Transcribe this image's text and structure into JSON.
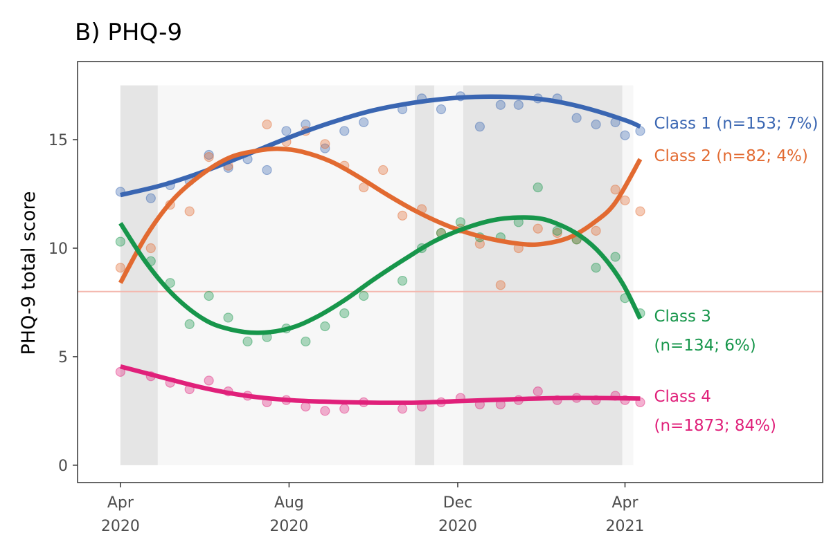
{
  "chart_data": {
    "type": "line",
    "title": "B) PHQ-9",
    "ylabel": "PHQ-9 total score",
    "xlabel": "",
    "ylim": [
      -0.8,
      18.6
    ],
    "xlim": [
      "2020-03-01",
      "2021-08-22"
    ],
    "yticks": [
      0,
      5,
      10,
      15
    ],
    "xticks": [
      {
        "date": "2020-04-01",
        "label": [
          "Apr",
          "2020"
        ]
      },
      {
        "date": "2020-08-01",
        "label": [
          "Aug",
          "2020"
        ]
      },
      {
        "date": "2020-12-01",
        "label": [
          "Dec",
          "2020"
        ]
      },
      {
        "date": "2021-04-01",
        "label": [
          "Apr",
          "2021"
        ]
      }
    ],
    "grid": false,
    "reference_line": {
      "y": 8,
      "color": "#f4b7ae"
    },
    "background_period": {
      "start": "2020-04-01",
      "end": "2021-04-07"
    },
    "shaded_periods": [
      {
        "start": "2020-04-01",
        "end": "2020-04-28"
      },
      {
        "start": "2020-10-31",
        "end": "2020-11-14"
      },
      {
        "start": "2020-12-05",
        "end": "2021-03-30"
      }
    ],
    "series": [
      {
        "name": "Class 1",
        "label_lines": [
          "Class 1 (n=153; 7%)"
        ],
        "color": "#3a66b2",
        "points": [
          [
            "2020-04-01",
            12.6
          ],
          [
            "2020-04-23",
            12.3
          ],
          [
            "2020-05-07",
            12.9
          ],
          [
            "2020-05-21",
            13.1
          ],
          [
            "2020-06-04",
            14.3
          ],
          [
            "2020-06-18",
            13.7
          ],
          [
            "2020-07-02",
            14.1
          ],
          [
            "2020-07-16",
            13.6
          ],
          [
            "2020-07-30",
            15.4
          ],
          [
            "2020-08-13",
            15.7
          ],
          [
            "2020-08-27",
            14.6
          ],
          [
            "2020-09-10",
            15.4
          ],
          [
            "2020-09-24",
            15.8
          ],
          [
            "2020-10-22",
            16.4
          ],
          [
            "2020-11-05",
            16.9
          ],
          [
            "2020-11-19",
            16.4
          ],
          [
            "2020-12-03",
            17.0
          ],
          [
            "2020-12-17",
            15.6
          ],
          [
            "2021-01-01",
            16.6
          ],
          [
            "2021-01-14",
            16.6
          ],
          [
            "2021-01-28",
            16.9
          ],
          [
            "2021-02-11",
            16.9
          ],
          [
            "2021-02-25",
            16.0
          ],
          [
            "2021-03-11",
            15.7
          ],
          [
            "2021-03-25",
            15.8
          ],
          [
            "2021-04-01",
            15.2
          ],
          [
            "2021-04-12",
            15.4
          ]
        ],
        "fit": [
          [
            "2020-04-01",
            12.45
          ],
          [
            "2020-05-01",
            12.9
          ],
          [
            "2020-06-01",
            13.55
          ],
          [
            "2020-07-01",
            14.3
          ],
          [
            "2020-08-01",
            15.1
          ],
          [
            "2020-09-01",
            15.8
          ],
          [
            "2020-10-01",
            16.35
          ],
          [
            "2020-11-01",
            16.72
          ],
          [
            "2020-12-01",
            16.93
          ],
          [
            "2021-01-01",
            16.98
          ],
          [
            "2021-02-01",
            16.85
          ],
          [
            "2021-03-01",
            16.5
          ],
          [
            "2021-04-01",
            15.9
          ],
          [
            "2021-04-12",
            15.6
          ]
        ]
      },
      {
        "name": "Class 2",
        "label_lines": [
          "Class 2 (n=82; 4%)"
        ],
        "color": "#e26a31",
        "points": [
          [
            "2020-04-01",
            9.1
          ],
          [
            "2020-04-23",
            10.0
          ],
          [
            "2020-05-07",
            12.0
          ],
          [
            "2020-05-21",
            11.7
          ],
          [
            "2020-06-04",
            14.2
          ],
          [
            "2020-06-18",
            13.8
          ],
          [
            "2020-07-16",
            15.7
          ],
          [
            "2020-07-30",
            14.9
          ],
          [
            "2020-08-13",
            15.4
          ],
          [
            "2020-08-27",
            14.8
          ],
          [
            "2020-09-10",
            13.8
          ],
          [
            "2020-09-24",
            12.8
          ],
          [
            "2020-10-08",
            13.6
          ],
          [
            "2020-10-22",
            11.5
          ],
          [
            "2020-11-05",
            11.8
          ],
          [
            "2020-11-19",
            10.7
          ],
          [
            "2020-12-03",
            10.9
          ],
          [
            "2020-12-17",
            10.2
          ],
          [
            "2021-01-01",
            8.3
          ],
          [
            "2021-01-14",
            10.0
          ],
          [
            "2021-01-28",
            10.9
          ],
          [
            "2021-02-11",
            10.7
          ],
          [
            "2021-02-25",
            10.4
          ],
          [
            "2021-03-11",
            10.8
          ],
          [
            "2021-03-25",
            12.7
          ],
          [
            "2021-04-01",
            12.2
          ],
          [
            "2021-04-12",
            11.7
          ]
        ],
        "fit": [
          [
            "2020-04-01",
            8.4
          ],
          [
            "2020-04-20",
            10.6
          ],
          [
            "2020-05-10",
            12.3
          ],
          [
            "2020-06-01",
            13.5
          ],
          [
            "2020-06-20",
            14.2
          ],
          [
            "2020-07-10",
            14.5
          ],
          [
            "2020-07-25",
            14.58
          ],
          [
            "2020-08-10",
            14.45
          ],
          [
            "2020-08-31",
            14.0
          ],
          [
            "2020-09-20",
            13.3
          ],
          [
            "2020-10-10",
            12.5
          ],
          [
            "2020-11-01",
            11.7
          ],
          [
            "2020-11-25",
            11.0
          ],
          [
            "2020-12-20",
            10.5
          ],
          [
            "2021-01-15",
            10.2
          ],
          [
            "2021-02-01",
            10.2
          ],
          [
            "2021-02-20",
            10.5
          ],
          [
            "2021-03-10",
            11.2
          ],
          [
            "2021-03-25",
            12.1
          ],
          [
            "2021-04-12",
            14.1
          ]
        ]
      },
      {
        "name": "Class 3",
        "label_lines": [
          "Class 3",
          "(n=134; 6%)"
        ],
        "color": "#17964b",
        "points": [
          [
            "2020-04-01",
            10.3
          ],
          [
            "2020-04-23",
            9.4
          ],
          [
            "2020-05-07",
            8.4
          ],
          [
            "2020-05-21",
            6.5
          ],
          [
            "2020-06-04",
            7.8
          ],
          [
            "2020-06-18",
            6.8
          ],
          [
            "2020-07-02",
            5.7
          ],
          [
            "2020-07-16",
            5.9
          ],
          [
            "2020-07-30",
            6.3
          ],
          [
            "2020-08-13",
            5.7
          ],
          [
            "2020-08-27",
            6.4
          ],
          [
            "2020-09-10",
            7.0
          ],
          [
            "2020-09-24",
            7.8
          ],
          [
            "2020-10-22",
            8.5
          ],
          [
            "2020-11-05",
            10.0
          ],
          [
            "2020-11-19",
            10.7
          ],
          [
            "2020-12-03",
            11.2
          ],
          [
            "2020-12-17",
            10.5
          ],
          [
            "2021-01-01",
            10.5
          ],
          [
            "2021-01-14",
            11.2
          ],
          [
            "2021-01-28",
            12.8
          ],
          [
            "2021-02-11",
            10.8
          ],
          [
            "2021-02-25",
            10.4
          ],
          [
            "2021-03-11",
            9.1
          ],
          [
            "2021-03-25",
            9.6
          ],
          [
            "2021-04-01",
            7.7
          ],
          [
            "2021-04-12",
            7.0
          ]
        ],
        "fit": [
          [
            "2020-04-01",
            11.15
          ],
          [
            "2020-04-20",
            9.3
          ],
          [
            "2020-05-10",
            7.8
          ],
          [
            "2020-06-01",
            6.7
          ],
          [
            "2020-06-20",
            6.25
          ],
          [
            "2020-07-10",
            6.1
          ],
          [
            "2020-08-01",
            6.3
          ],
          [
            "2020-08-20",
            6.8
          ],
          [
            "2020-09-10",
            7.6
          ],
          [
            "2020-10-01",
            8.55
          ],
          [
            "2020-10-25",
            9.55
          ],
          [
            "2020-11-15",
            10.35
          ],
          [
            "2020-12-10",
            11.0
          ],
          [
            "2021-01-01",
            11.35
          ],
          [
            "2021-01-25",
            11.4
          ],
          [
            "2021-02-10",
            11.15
          ],
          [
            "2021-02-28",
            10.55
          ],
          [
            "2021-03-15",
            9.7
          ],
          [
            "2021-03-30",
            8.4
          ],
          [
            "2021-04-12",
            6.75
          ]
        ]
      },
      {
        "name": "Class 4",
        "label_lines": [
          "Class 4",
          "(n=1873; 84%)"
        ],
        "color": "#e0207a",
        "points": [
          [
            "2020-04-01",
            4.3
          ],
          [
            "2020-04-23",
            4.1
          ],
          [
            "2020-05-07",
            3.8
          ],
          [
            "2020-05-21",
            3.5
          ],
          [
            "2020-06-04",
            3.9
          ],
          [
            "2020-06-18",
            3.4
          ],
          [
            "2020-07-02",
            3.2
          ],
          [
            "2020-07-16",
            2.9
          ],
          [
            "2020-07-30",
            3.0
          ],
          [
            "2020-08-13",
            2.7
          ],
          [
            "2020-08-27",
            2.5
          ],
          [
            "2020-09-10",
            2.6
          ],
          [
            "2020-09-24",
            2.9
          ],
          [
            "2020-10-22",
            2.6
          ],
          [
            "2020-11-05",
            2.7
          ],
          [
            "2020-11-19",
            2.9
          ],
          [
            "2020-12-03",
            3.1
          ],
          [
            "2020-12-17",
            2.8
          ],
          [
            "2021-01-01",
            2.8
          ],
          [
            "2021-01-14",
            3.0
          ],
          [
            "2021-01-28",
            3.4
          ],
          [
            "2021-02-11",
            3.0
          ],
          [
            "2021-02-25",
            3.1
          ],
          [
            "2021-03-11",
            3.0
          ],
          [
            "2021-03-25",
            3.2
          ],
          [
            "2021-04-01",
            3.0
          ],
          [
            "2021-04-12",
            2.9
          ]
        ],
        "fit": [
          [
            "2020-04-01",
            4.55
          ],
          [
            "2020-05-01",
            4.05
          ],
          [
            "2020-06-01",
            3.55
          ],
          [
            "2020-07-01",
            3.2
          ],
          [
            "2020-08-01",
            3.0
          ],
          [
            "2020-09-01",
            2.92
          ],
          [
            "2020-10-01",
            2.88
          ],
          [
            "2020-11-01",
            2.88
          ],
          [
            "2020-12-01",
            2.95
          ],
          [
            "2021-01-01",
            3.02
          ],
          [
            "2021-02-01",
            3.08
          ],
          [
            "2021-03-01",
            3.1
          ],
          [
            "2021-04-12",
            3.07
          ]
        ]
      }
    ]
  }
}
